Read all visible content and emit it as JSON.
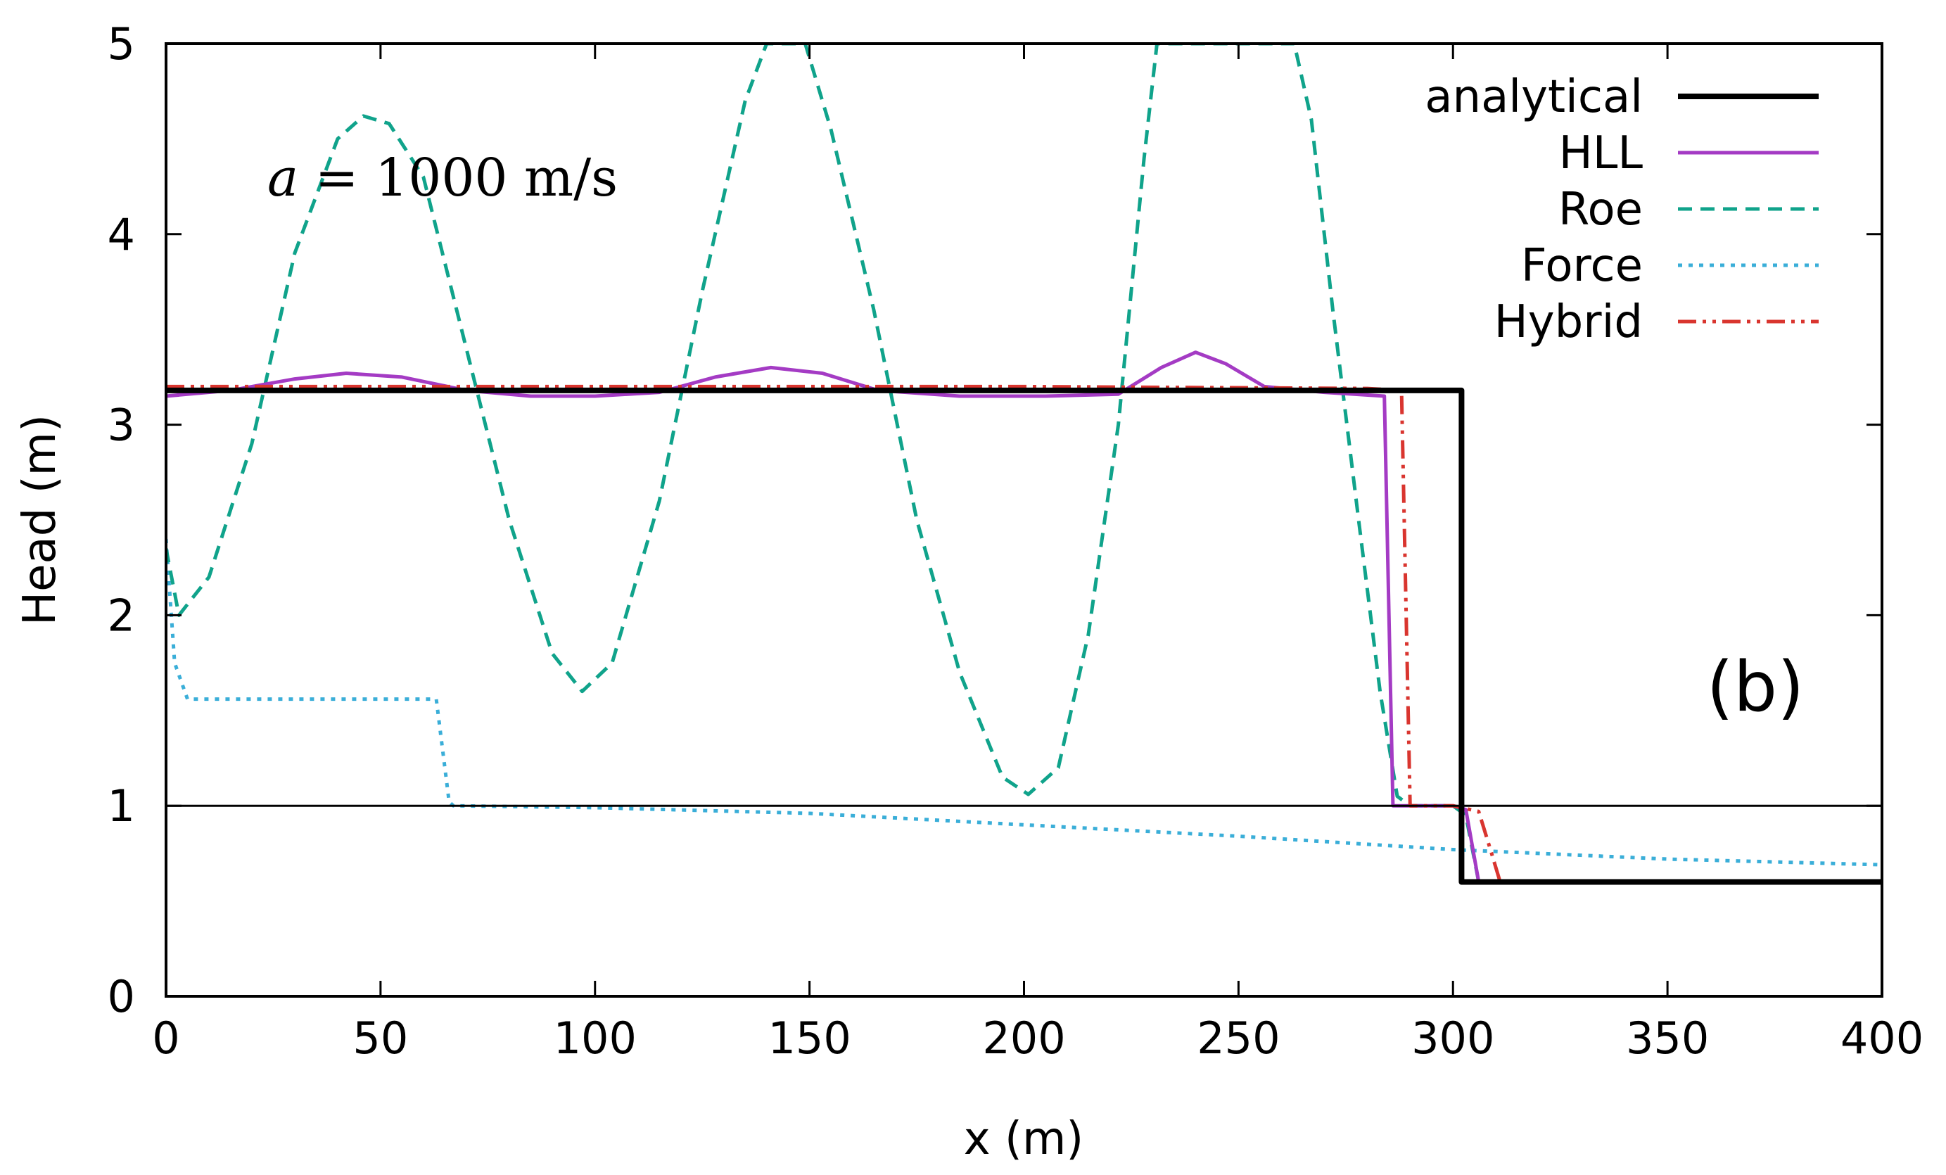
{
  "chart_data": {
    "type": "line",
    "title": "",
    "xlabel": "x (m)",
    "ylabel": "Head (m)",
    "xlim": [
      0,
      400
    ],
    "ylim": [
      0,
      5
    ],
    "xticks": [
      "0",
      "50",
      "100",
      "150",
      "200",
      "250",
      "300",
      "350",
      "400"
    ],
    "yticks": [
      "0",
      "1",
      "2",
      "3",
      "4",
      "5"
    ],
    "grid": false,
    "legend_position": "top-right",
    "annotations": {
      "wave_speed_symbol": "a",
      "wave_speed_text": " = 1000 m/s",
      "panel_label": "(b)"
    },
    "reference_line": {
      "y": 1,
      "color": "#000000"
    },
    "series": [
      {
        "name": "analytical",
        "color": "#000000",
        "dash": "solid",
        "points": [
          [
            0,
            3.18
          ],
          [
            302,
            3.18
          ],
          [
            302,
            0.6
          ],
          [
            400,
            0.6
          ]
        ]
      },
      {
        "name": "HLL",
        "color": "#a43bc4",
        "dash": "solid",
        "points": [
          [
            0,
            3.15
          ],
          [
            15,
            3.18
          ],
          [
            30,
            3.24
          ],
          [
            42,
            3.27
          ],
          [
            55,
            3.25
          ],
          [
            70,
            3.18
          ],
          [
            85,
            3.15
          ],
          [
            100,
            3.15
          ],
          [
            115,
            3.17
          ],
          [
            128,
            3.25
          ],
          [
            141,
            3.3
          ],
          [
            153,
            3.27
          ],
          [
            166,
            3.18
          ],
          [
            185,
            3.15
          ],
          [
            205,
            3.15
          ],
          [
            222,
            3.16
          ],
          [
            232,
            3.3
          ],
          [
            240,
            3.38
          ],
          [
            247,
            3.32
          ],
          [
            256,
            3.2
          ],
          [
            270,
            3.17
          ],
          [
            284,
            3.15
          ],
          [
            286,
            1.0
          ],
          [
            300,
            1.0
          ],
          [
            303,
            0.98
          ],
          [
            306,
            0.6
          ],
          [
            400,
            0.6
          ]
        ]
      },
      {
        "name": "Roe",
        "color": "#10a38b",
        "dash": "dashed",
        "points": [
          [
            0,
            2.35
          ],
          [
            3,
            2.0
          ],
          [
            10,
            2.2
          ],
          [
            20,
            2.9
          ],
          [
            30,
            3.9
          ],
          [
            40,
            4.5
          ],
          [
            46,
            4.62
          ],
          [
            52,
            4.58
          ],
          [
            60,
            4.3
          ],
          [
            70,
            3.4
          ],
          [
            80,
            2.5
          ],
          [
            90,
            1.8
          ],
          [
            97,
            1.6
          ],
          [
            104,
            1.75
          ],
          [
            115,
            2.6
          ],
          [
            125,
            3.7
          ],
          [
            135,
            4.7
          ],
          [
            140,
            5.0
          ],
          [
            149,
            5.0
          ],
          [
            155,
            4.55
          ],
          [
            165,
            3.6
          ],
          [
            175,
            2.5
          ],
          [
            185,
            1.7
          ],
          [
            195,
            1.15
          ],
          [
            201,
            1.06
          ],
          [
            208,
            1.2
          ],
          [
            215,
            1.9
          ],
          [
            222,
            3.0
          ],
          [
            228,
            4.4
          ],
          [
            231,
            5.0
          ],
          [
            263,
            5.0
          ],
          [
            267,
            4.6
          ],
          [
            272,
            3.6
          ],
          [
            278,
            2.5
          ],
          [
            283,
            1.6
          ],
          [
            287,
            1.05
          ],
          [
            290,
            1.0
          ],
          [
            300,
            1.0
          ],
          [
            303,
            0.95
          ],
          [
            306,
            0.6
          ],
          [
            400,
            0.6
          ]
        ]
      },
      {
        "name": "Force",
        "color": "#3aaed8",
        "dash": "dotted",
        "points": [
          [
            0,
            2.4
          ],
          [
            2,
            1.75
          ],
          [
            5,
            1.56
          ],
          [
            63,
            1.56
          ],
          [
            66,
            1.02
          ],
          [
            67,
            1.0
          ],
          [
            100,
            0.99
          ],
          [
            150,
            0.96
          ],
          [
            200,
            0.9
          ],
          [
            250,
            0.84
          ],
          [
            300,
            0.77
          ],
          [
            350,
            0.72
          ],
          [
            400,
            0.69
          ]
        ]
      },
      {
        "name": "Hybrid",
        "color": "#d9352f",
        "dash": "dashdotdot",
        "points": [
          [
            0,
            3.2
          ],
          [
            100,
            3.2
          ],
          [
            200,
            3.2
          ],
          [
            280,
            3.19
          ],
          [
            288,
            3.18
          ],
          [
            290,
            1.0
          ],
          [
            300,
            1.0
          ],
          [
            306,
            0.97
          ],
          [
            309,
            0.75
          ],
          [
            311,
            0.6
          ],
          [
            400,
            0.6
          ]
        ]
      }
    ]
  }
}
